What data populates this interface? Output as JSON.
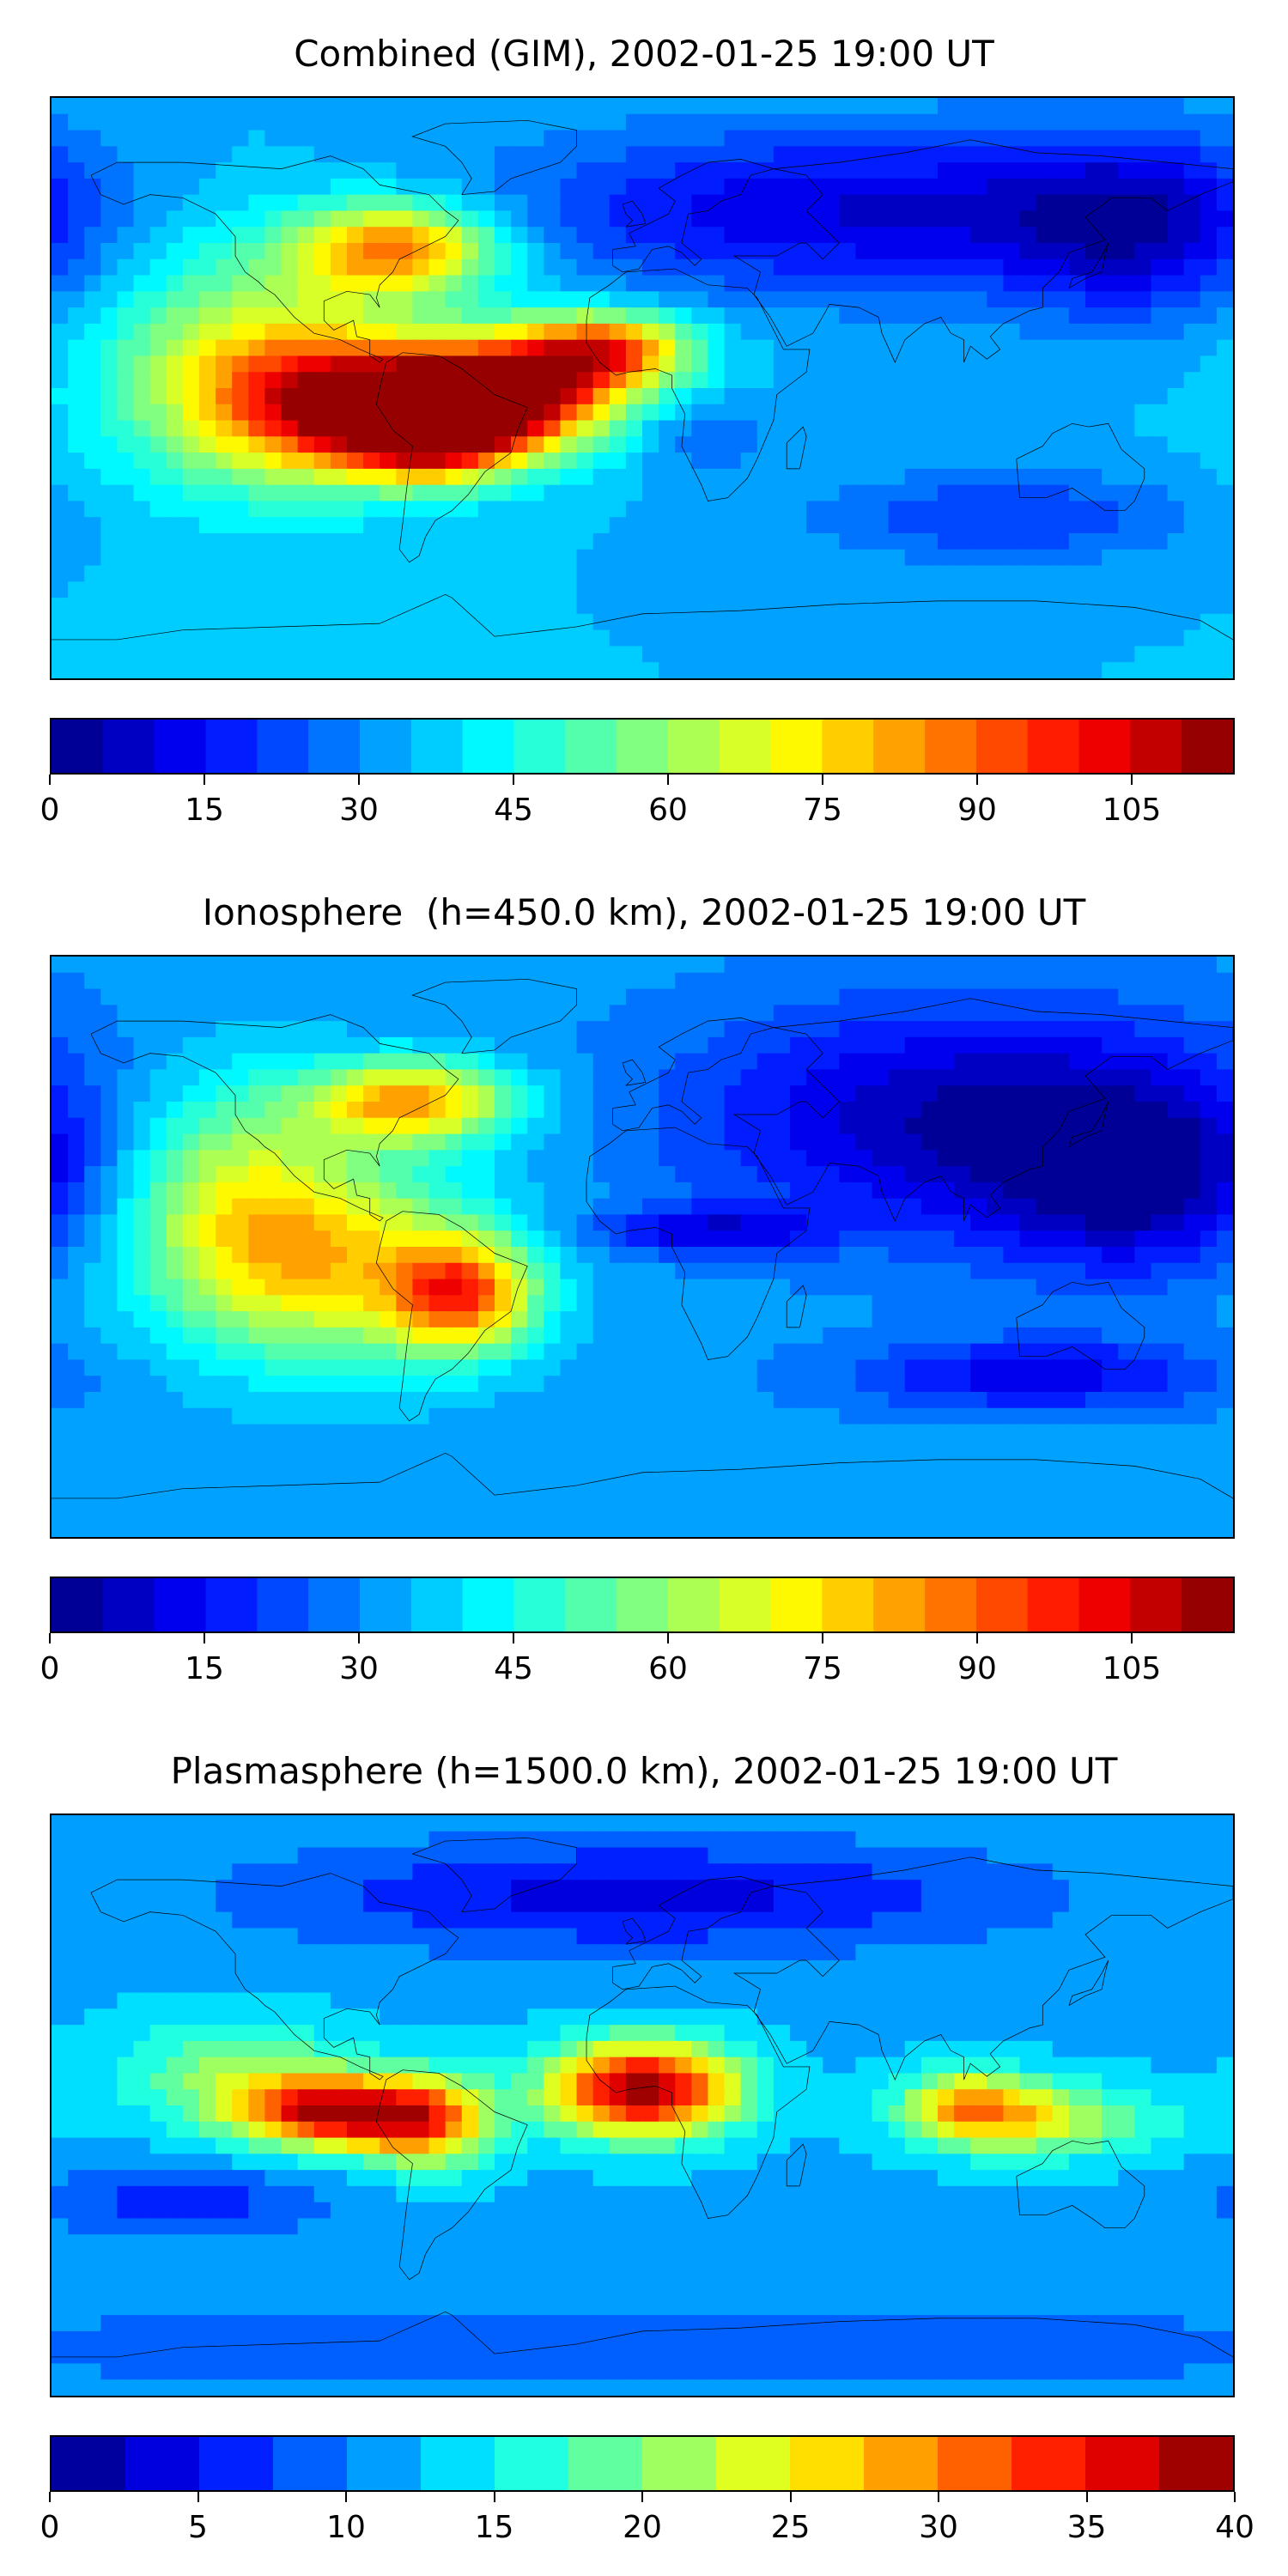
{
  "chart_data": [
    {
      "type": "heatmap",
      "title": "Combined (GIM), 2002-01-25 19:00 UT",
      "colorbar": {
        "ticks": [
          "0",
          "15",
          "30",
          "45",
          "60",
          "75",
          "90",
          "105"
        ],
        "tick_values": [
          0,
          15,
          30,
          45,
          60,
          75,
          90,
          105
        ],
        "range": [
          0,
          115
        ],
        "levels": 23
      },
      "field": {
        "background": 35,
        "features": [
          {
            "lon": -82,
            "lat": -5,
            "value": 105,
            "spread_lon": 28,
            "spread_lat": 14
          },
          {
            "lon": -62,
            "lat": -12,
            "value": 104,
            "spread_lon": 18,
            "spread_lat": 10
          },
          {
            "lon": -35,
            "lat": 0,
            "value": 98,
            "spread_lon": 22,
            "spread_lat": 12
          },
          {
            "lon": -75,
            "lat": 43,
            "value": 88,
            "spread_lon": 22,
            "spread_lat": 10
          },
          {
            "lon": -10,
            "lat": 12,
            "value": 84,
            "spread_lon": 18,
            "spread_lat": 8
          },
          {
            "lon": -120,
            "lat": 5,
            "value": 70,
            "spread_lon": 30,
            "spread_lat": 25
          },
          {
            "lon": 60,
            "lat": 55,
            "value": 10,
            "spread_lon": 70,
            "spread_lat": 18
          },
          {
            "lon": 150,
            "lat": 50,
            "value": 12,
            "spread_lon": 30,
            "spread_lat": 20
          },
          {
            "lon": 110,
            "lat": -40,
            "value": 20,
            "spread_lon": 40,
            "spread_lat": 10
          },
          {
            "lon": 20,
            "lat": -15,
            "value": 25,
            "spread_lon": 15,
            "spread_lat": 8
          }
        ]
      }
    },
    {
      "type": "heatmap",
      "title": "Ionosphere  (h=450.0 km), 2002-01-25 19:00 UT",
      "colorbar": {
        "ticks": [
          "0",
          "15",
          "30",
          "45",
          "60",
          "75",
          "90",
          "105"
        ],
        "tick_values": [
          0,
          15,
          30,
          45,
          60,
          75,
          90,
          105
        ],
        "range": [
          0,
          115
        ],
        "levels": 23
      },
      "field": {
        "background": 32,
        "features": [
          {
            "lon": -70,
            "lat": 45,
            "value": 82,
            "spread_lon": 22,
            "spread_lat": 9
          },
          {
            "lon": -55,
            "lat": -15,
            "value": 82,
            "spread_lon": 15,
            "spread_lat": 12
          },
          {
            "lon": -95,
            "lat": -5,
            "value": 72,
            "spread_lon": 35,
            "spread_lat": 22
          },
          {
            "lon": -125,
            "lat": 20,
            "value": 58,
            "spread_lon": 25,
            "spread_lat": 25
          },
          {
            "lon": 100,
            "lat": 40,
            "value": 5,
            "spread_lon": 60,
            "spread_lat": 25
          },
          {
            "lon": 20,
            "lat": 5,
            "value": 12,
            "spread_lon": 25,
            "spread_lat": 5
          },
          {
            "lon": 120,
            "lat": -40,
            "value": 12,
            "spread_lon": 40,
            "spread_lat": 8
          },
          {
            "lon": 150,
            "lat": 20,
            "value": 8,
            "spread_lon": 30,
            "spread_lat": 20
          }
        ]
      }
    },
    {
      "type": "heatmap",
      "title": "Plasmasphere (h=1500.0 km), 2002-01-25 19:00 UT",
      "colorbar": {
        "ticks": [
          "0",
          "5",
          "10",
          "15",
          "20",
          "25",
          "30",
          "35",
          "40"
        ],
        "tick_values": [
          0,
          5,
          10,
          15,
          20,
          25,
          30,
          35,
          40
        ],
        "range": [
          0,
          40
        ],
        "levels": 16
      },
      "field": {
        "background": 12,
        "features": [
          {
            "lon": 0,
            "lat": 5,
            "value": 40,
            "spread_lon": 20,
            "spread_lat": 10
          },
          {
            "lon": -95,
            "lat": -2,
            "value": 36,
            "spread_lon": 20,
            "spread_lat": 8
          },
          {
            "lon": -65,
            "lat": -5,
            "value": 29,
            "spread_lon": 14,
            "spread_lat": 10
          },
          {
            "lon": 100,
            "lat": 0,
            "value": 26,
            "spread_lon": 15,
            "spread_lat": 8
          },
          {
            "lon": 125,
            "lat": -5,
            "value": 22,
            "spread_lon": 25,
            "spread_lat": 8
          },
          {
            "lon": -125,
            "lat": 10,
            "value": 20,
            "spread_lon": 25,
            "spread_lat": 12
          },
          {
            "lon": 0,
            "lat": 65,
            "value": 4,
            "spread_lon": 80,
            "spread_lat": 12
          },
          {
            "lon": 0,
            "lat": -75,
            "value": 8,
            "spread_lon": 180,
            "spread_lat": 10
          },
          {
            "lon": -140,
            "lat": -30,
            "value": 6,
            "spread_lon": 30,
            "spread_lat": 8
          }
        ]
      }
    }
  ]
}
